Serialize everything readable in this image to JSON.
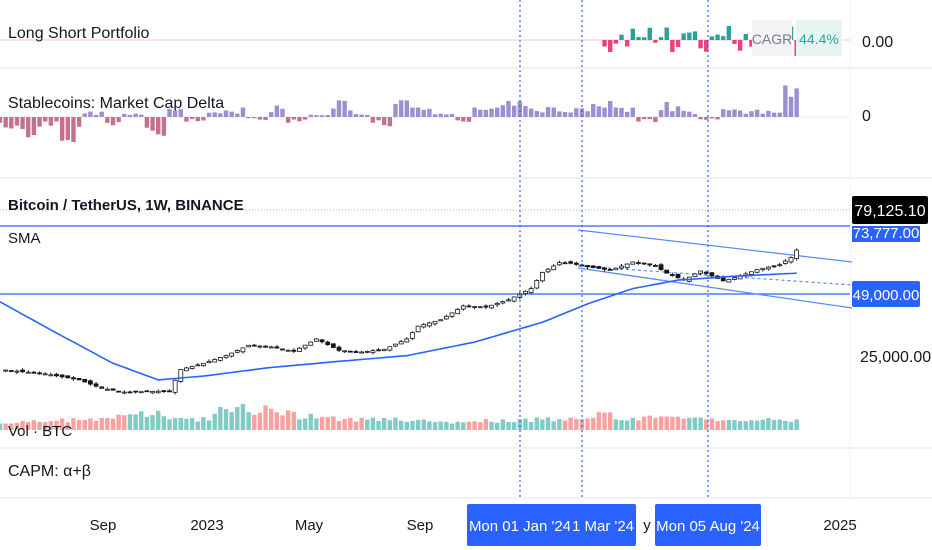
{
  "panes": {
    "long_short": {
      "title": "Long Short Portfolio",
      "value": "0.00",
      "cagr_label": "CAGR",
      "cagr_value": "44.4%"
    },
    "stablecoins": {
      "title": "Stablecoins: Market Cap Delta",
      "value": "0"
    },
    "main": {
      "title": "Bitcoin / TetherUS, 1W, BINANCE",
      "sma_label": "SMA",
      "volume_label": "Vol · BTC"
    },
    "capm": {
      "title": "CAPM: α+β"
    }
  },
  "price_axis": {
    "last_price": "79,125.10",
    "level_upper": "73,777.00",
    "level_lower": "49,000.00",
    "tick_25000": "25,000.00"
  },
  "time_axis": {
    "labels": [
      "Sep",
      "2023",
      "May",
      "Sep",
      "2025"
    ],
    "hidden_label": "y",
    "markers": [
      "Mon 01 Jan '24",
      "1 Mar '24",
      "Mon 05 Aug '24"
    ]
  },
  "colors": {
    "up": "#26a69a",
    "down": "#ef5350",
    "sma": "#2962ff",
    "stable_up": "#9c8fd1",
    "stable_down": "#c2728f",
    "ls_up": "#2e9e98",
    "ls_down": "#ec407a",
    "hline": "#2962ff",
    "marker_bg": "#2962ff",
    "last_price_bg": "#000000"
  },
  "chart_data": {
    "type": "candlestick",
    "title": "Bitcoin / TetherUS, 1W, BINANCE",
    "x_range": [
      "2022-06",
      "2024-11"
    ],
    "y_scale": "log",
    "ylim": [
      15000,
      90000
    ],
    "horizontal_levels": [
      73777,
      49000
    ],
    "last_price": 79125.1,
    "close_path": [
      [
        0,
        21500
      ],
      [
        8,
        20500
      ],
      [
        14,
        19200
      ],
      [
        18,
        17500
      ],
      [
        22,
        16800
      ],
      [
        26,
        16900
      ],
      [
        30,
        17000
      ],
      [
        32,
        21500
      ],
      [
        36,
        23000
      ],
      [
        40,
        25000
      ],
      [
        44,
        28000
      ],
      [
        48,
        27500
      ],
      [
        52,
        26200
      ],
      [
        56,
        30000
      ],
      [
        60,
        26500
      ],
      [
        64,
        26000
      ],
      [
        68,
        26800
      ],
      [
        72,
        30000
      ],
      [
        74,
        34500
      ],
      [
        78,
        37000
      ],
      [
        82,
        43000
      ],
      [
        86,
        42500
      ],
      [
        90,
        46000
      ],
      [
        94,
        52000
      ],
      [
        96,
        62000
      ],
      [
        99,
        69000
      ],
      [
        101,
        68500
      ],
      [
        104,
        66000
      ],
      [
        108,
        63500
      ],
      [
        112,
        69500
      ],
      [
        116,
        66500
      ],
      [
        118,
        61500
      ],
      [
        121,
        57000
      ],
      [
        124,
        63000
      ],
      [
        128,
        56500
      ],
      [
        131,
        59500
      ],
      [
        134,
        64000
      ],
      [
        138,
        67500
      ],
      [
        140,
        73000
      ],
      [
        141,
        79125
      ]
    ],
    "sma_path": [
      [
        0,
        45000
      ],
      [
        10,
        32000
      ],
      [
        20,
        23000
      ],
      [
        28,
        19200
      ],
      [
        36,
        20000
      ],
      [
        48,
        22000
      ],
      [
        60,
        23500
      ],
      [
        72,
        25000
      ],
      [
        84,
        29000
      ],
      [
        96,
        36000
      ],
      [
        104,
        44000
      ],
      [
        112,
        52000
      ],
      [
        120,
        57000
      ],
      [
        130,
        59500
      ],
      [
        141,
        61500
      ]
    ],
    "markers": [
      "2024-01-01",
      "2024-03-01",
      "2024-08-05"
    ],
    "volume": [
      0.2,
      0.25,
      0.3,
      0.4,
      0.55,
      0.6,
      0.45,
      0.35,
      0.8,
      0.9,
      0.7,
      0.5,
      0.4,
      0.35,
      0.3,
      0.25,
      0.2,
      0.22,
      0.25,
      0.3,
      0.35,
      0.4,
      0.5,
      0.45,
      0.4,
      0.35,
      0.3,
      0.28,
      0.3,
      0.35
    ],
    "stablecoin_delta": [
      -0.4,
      -0.8,
      -0.3,
      -0.9,
      0.2,
      -0.3,
      0.1,
      -0.6,
      0.3,
      -0.2,
      0.2,
      0.3,
      -0.1,
      0.4,
      -0.2,
      0.1,
      0.5,
      0.2,
      -0.3,
      0.6,
      0.3,
      0.1,
      -0.2,
      0.4,
      0.5,
      0.8,
      0.3,
      0.2,
      0.4,
      0.6,
      0.3,
      -0.2,
      0.5,
      0.2,
      -0.1,
      0.4,
      0.3,
      0.2,
      1.0
    ]
  }
}
